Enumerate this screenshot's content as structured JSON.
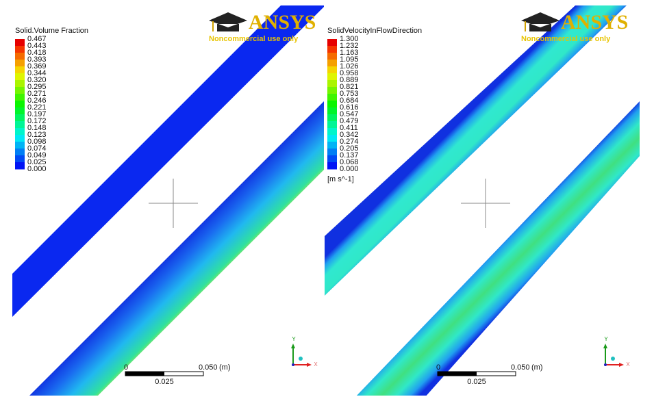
{
  "panels": [
    {
      "legend_title": "Solid.Volume Fraction",
      "levels": [
        "0.467",
        "0.443",
        "0.418",
        "0.393",
        "0.369",
        "0.344",
        "0.320",
        "0.295",
        "0.271",
        "0.246",
        "0.221",
        "0.197",
        "0.172",
        "0.148",
        "0.123",
        "0.098",
        "0.074",
        "0.049",
        "0.025",
        "0.000"
      ],
      "logo": "ANSYS",
      "logo_note": "Noncommercial use only",
      "scale": {
        "start": "0",
        "end": "0.050",
        "unit": "(m)",
        "mid": "0.025"
      },
      "axes": {
        "y": "Y",
        "x": "X"
      }
    },
    {
      "legend_title": "SolidVelocityInFlowDirection",
      "levels": [
        "1.300",
        "1.232",
        "1.163",
        "1.095",
        "1.026",
        "0.958",
        "0.889",
        "0.821",
        "0.753",
        "0.684",
        "0.616",
        "0.547",
        "0.479",
        "0.411",
        "0.342",
        "0.274",
        "0.205",
        "0.137",
        "0.068",
        "0.000"
      ],
      "unit": "[m s^-1]",
      "logo": "ANSYS",
      "logo_note": "Noncommercial use only",
      "scale": {
        "start": "0",
        "end": "0.050",
        "unit": "(m)",
        "mid": "0.025"
      },
      "axes": {
        "y": "Y",
        "x": "X"
      }
    }
  ]
}
